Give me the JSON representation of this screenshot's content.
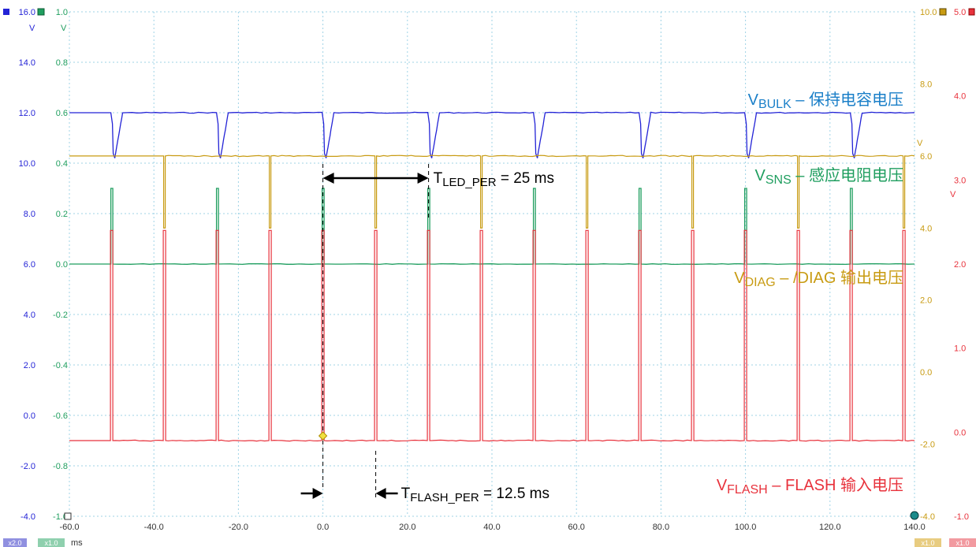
{
  "colors": {
    "bulk": "#2323d6",
    "sns": "#1f9e5f",
    "diag": "#c89b12",
    "flash": "#e8323c",
    "bulk_label": "#1a7fc8",
    "grid": "#9fd3e6",
    "annotation": "#000000"
  },
  "chart_data": {
    "type": "line",
    "x_unit": "ms",
    "xlim": [
      -60,
      140
    ],
    "x_ticks": [
      "-60.0",
      "-40.0",
      "-20.0",
      "0.0",
      "20.0",
      "40.0",
      "60.0",
      "80.0",
      "100.0",
      "120.0",
      "140.0"
    ],
    "grid": true,
    "axes": [
      {
        "id": "bulk",
        "unit": "V",
        "range": [
          -4,
          16
        ],
        "ticks": [
          "16.0",
          "14.0",
          "12.0",
          "10.0",
          "8.0",
          "6.0",
          "4.0",
          "2.0",
          "0.0",
          "-2.0",
          "-4.0"
        ]
      },
      {
        "id": "sns",
        "unit": "V",
        "range": [
          -1,
          1
        ],
        "ticks": [
          "1.0",
          "0.8",
          "0.6",
          "0.4",
          "0.2",
          "0.0",
          "-0.2",
          "-0.4",
          "-0.6",
          "-0.8",
          "-1.0"
        ]
      },
      {
        "id": "diag",
        "unit": "V",
        "range": [
          -4,
          10
        ],
        "ticks": [
          "10.0",
          "8.0",
          "6.0",
          "4.0",
          "2.0",
          "0.0",
          "-2.0",
          "-4.0"
        ]
      },
      {
        "id": "flash",
        "unit": "V",
        "range": [
          -1,
          5
        ],
        "ticks": [
          "5.0",
          "4.0",
          "3.0",
          "2.0",
          "1.0",
          "0.0",
          "-1.0"
        ]
      }
    ],
    "series": [
      {
        "id": "bulk",
        "axis": "bulk",
        "name_main": "V",
        "name_sub": "BULK",
        "name_rest": " – 保持电容电压",
        "baseline": 12.0,
        "dip_min": 10.2,
        "period_ms": 25,
        "first_event_ms": -50
      },
      {
        "id": "sns",
        "axis": "sns",
        "name_main": "V",
        "name_sub": "SNS",
        "name_rest": " – 感应电阻电压",
        "baseline": 0.0,
        "pulse_peak": 0.3,
        "period_ms": 25,
        "first_event_ms": -50
      },
      {
        "id": "diag",
        "axis": "diag",
        "name_main": "V",
        "name_sub": "DIAG",
        "name_rest": " – /DIAG 输出电压",
        "high": 6.0,
        "low": 4.0,
        "period_ms": 25,
        "first_event_ms": -37.5
      },
      {
        "id": "flash",
        "axis": "flash",
        "name_main": "V",
        "name_sub": "FLASH",
        "name_rest": " – FLASH 输入电压",
        "low": -0.1,
        "high": 2.4,
        "period_ms": 12.5,
        "first_event_ms": -50
      }
    ],
    "annotations": [
      {
        "main": "T",
        "sub": "LED_PER",
        "rest": " = 25 ms",
        "from_ms": 0,
        "to_ms": 25
      },
      {
        "main": "T",
        "sub": "FLASH_PER",
        "rest": " = 12.5 ms",
        "from_ms": 0,
        "to_ms": 12.5
      }
    ]
  },
  "footer": {
    "x_unit_label": "ms",
    "left_badges": [
      "x2.0",
      "x1.0"
    ],
    "right_badges": [
      "x1.0",
      "x1.0"
    ]
  }
}
